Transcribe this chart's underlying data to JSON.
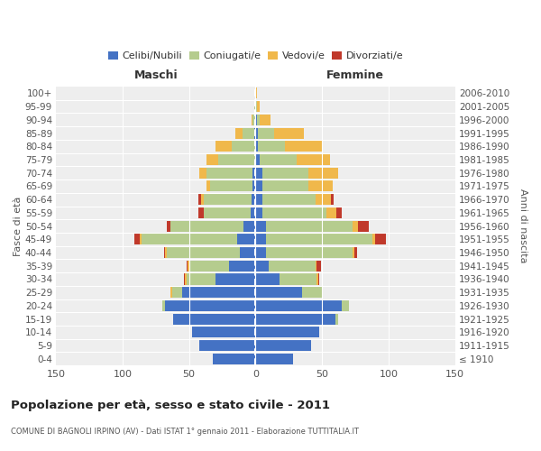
{
  "age_groups": [
    "100+",
    "95-99",
    "90-94",
    "85-89",
    "80-84",
    "75-79",
    "70-74",
    "65-69",
    "60-64",
    "55-59",
    "50-54",
    "45-49",
    "40-44",
    "35-39",
    "30-34",
    "25-29",
    "20-24",
    "15-19",
    "10-14",
    "5-9",
    "0-4"
  ],
  "birth_years": [
    "≤ 1910",
    "1911-1915",
    "1916-1920",
    "1921-1925",
    "1926-1930",
    "1931-1935",
    "1936-1940",
    "1941-1945",
    "1946-1950",
    "1951-1955",
    "1956-1960",
    "1961-1965",
    "1966-1970",
    "1971-1975",
    "1976-1980",
    "1981-1985",
    "1986-1990",
    "1991-1995",
    "1996-2000",
    "2001-2005",
    "2006-2010"
  ],
  "maschi": {
    "celibe": [
      0,
      0,
      0,
      1,
      0,
      0,
      2,
      2,
      3,
      4,
      9,
      14,
      12,
      20,
      30,
      55,
      68,
      62,
      48,
      42,
      32
    ],
    "coniugato": [
      0,
      1,
      2,
      9,
      18,
      28,
      35,
      32,
      36,
      35,
      55,
      72,
      55,
      30,
      22,
      8,
      2,
      0,
      0,
      0,
      0
    ],
    "vedovo": [
      0,
      0,
      1,
      5,
      12,
      9,
      5,
      3,
      2,
      0,
      0,
      1,
      1,
      1,
      1,
      1,
      0,
      0,
      0,
      0,
      0
    ],
    "divorziato": [
      0,
      0,
      0,
      0,
      0,
      0,
      0,
      0,
      2,
      4,
      3,
      4,
      1,
      1,
      1,
      0,
      0,
      0,
      0,
      0,
      0
    ]
  },
  "femmine": {
    "nubile": [
      0,
      0,
      1,
      2,
      2,
      3,
      5,
      5,
      5,
      5,
      8,
      8,
      8,
      10,
      18,
      35,
      65,
      60,
      48,
      42,
      28
    ],
    "coniugata": [
      0,
      1,
      2,
      12,
      20,
      28,
      35,
      35,
      40,
      48,
      65,
      80,
      65,
      35,
      28,
      15,
      5,
      2,
      0,
      0,
      0
    ],
    "vedova": [
      1,
      2,
      8,
      22,
      28,
      25,
      22,
      18,
      12,
      8,
      4,
      2,
      1,
      1,
      1,
      0,
      0,
      0,
      0,
      0,
      0
    ],
    "divorziata": [
      0,
      0,
      0,
      0,
      0,
      0,
      0,
      0,
      2,
      4,
      8,
      8,
      2,
      3,
      1,
      0,
      0,
      0,
      0,
      0,
      0
    ]
  },
  "colors": {
    "celibe": "#4472c4",
    "coniugato": "#b5cc8e",
    "vedovo": "#f0b84b",
    "divorziato": "#c0392b"
  },
  "title": "Popolazione per età, sesso e stato civile - 2011",
  "subtitle": "COMUNE DI BAGNOLI IRPINO (AV) - Dati ISTAT 1° gennaio 2011 - Elaborazione TUTTITALIA.IT",
  "header_left": "Maschi",
  "header_right": "Femmine",
  "ylabel_left": "Fasce di età",
  "ylabel_right": "Anni di nascita",
  "xlim": 150,
  "bg_color": "#eeeeee",
  "legend_labels": [
    "Celibi/Nubili",
    "Coniugati/e",
    "Vedovi/e",
    "Divorziati/e"
  ]
}
